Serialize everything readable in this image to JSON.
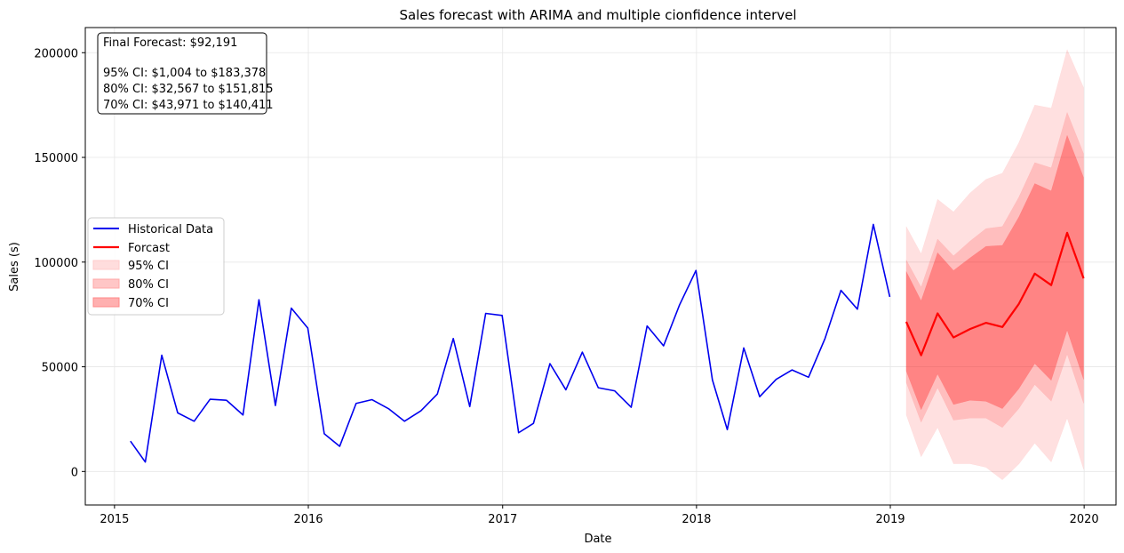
{
  "chart_data": {
    "type": "line",
    "title": "Sales forecast with ARIMA and multiple cionfidence intervel",
    "xlabel": "Date",
    "ylabel": "Sales (s)",
    "xlim": [
      "2014-11-07",
      "2020-03-01"
    ],
    "ylim": [
      -16000,
      212000
    ],
    "x_ticks": [
      "2015",
      "2016",
      "2017",
      "2018",
      "2019",
      "2020"
    ],
    "y_ticks": [
      0,
      50000,
      100000,
      150000,
      200000
    ],
    "grid": true,
    "legend_position": "center-left",
    "colors": {
      "historical": "#0000ee",
      "forecast": "#ff0000",
      "ci95": "#ffdddd",
      "ci80": "#ffbcbc",
      "ci70": "#ff8080"
    },
    "annotation": [
      "Final Forecast: $92,191",
      "",
      "95% CI: $1,004 to $183,378",
      "80% CI: $32,567 to $151,815",
      "70% CI: $43,971 to $140,411"
    ],
    "series": [
      {
        "name": "Historical Data",
        "kind": "line",
        "x": [
          "2015-01-31",
          "2015-02-28",
          "2015-03-31",
          "2015-04-30",
          "2015-05-31",
          "2015-06-30",
          "2015-07-31",
          "2015-08-31",
          "2015-09-30",
          "2015-10-31",
          "2015-11-30",
          "2015-12-31",
          "2016-01-31",
          "2016-02-29",
          "2016-03-31",
          "2016-04-30",
          "2016-05-31",
          "2016-06-30",
          "2016-07-31",
          "2016-08-31",
          "2016-09-30",
          "2016-10-31",
          "2016-11-30",
          "2016-12-31",
          "2017-01-31",
          "2017-02-28",
          "2017-03-31",
          "2017-04-30",
          "2017-05-31",
          "2017-06-30",
          "2017-07-31",
          "2017-08-31",
          "2017-09-30",
          "2017-10-31",
          "2017-11-30",
          "2017-12-31",
          "2018-01-31",
          "2018-02-28",
          "2018-03-31",
          "2018-04-30",
          "2018-05-31",
          "2018-06-30",
          "2018-07-31",
          "2018-08-31",
          "2018-09-30",
          "2018-10-31",
          "2018-11-30",
          "2018-12-31"
        ],
        "y": [
          14500,
          4500,
          55500,
          28000,
          24000,
          34500,
          34000,
          27000,
          82000,
          31500,
          78000,
          68500,
          18000,
          12000,
          32500,
          34300,
          30000,
          24000,
          29000,
          37000,
          63500,
          31000,
          75500,
          74500,
          18500,
          23000,
          51500,
          39000,
          57000,
          40000,
          38500,
          30700,
          69500,
          60000,
          79500,
          96000,
          43700,
          20000,
          59000,
          35700,
          44000,
          48500,
          45000,
          63500,
          86500,
          77500,
          118000,
          83400
        ]
      },
      {
        "name": "Forcast",
        "kind": "line",
        "x": [
          "2019-01-31",
          "2019-02-28",
          "2019-03-31",
          "2019-04-30",
          "2019-05-31",
          "2019-06-30",
          "2019-07-31",
          "2019-08-31",
          "2019-09-30",
          "2019-10-31",
          "2019-11-30",
          "2019-12-31"
        ],
        "y": [
          71500,
          55500,
          75500,
          64000,
          68000,
          71000,
          69000,
          80000,
          94500,
          89000,
          114000,
          92191
        ]
      }
    ],
    "bands": [
      {
        "name": "95% CI",
        "lower": [
          27000,
          7000,
          21000,
          3700,
          3700,
          2000,
          -4000,
          3500,
          13500,
          4500,
          25500,
          1004
        ],
        "upper": [
          117000,
          104000,
          130000,
          124000,
          133000,
          139500,
          142500,
          157000,
          175000,
          173500,
          201500,
          183378
        ]
      },
      {
        "name": "80% CI",
        "lower": [
          42500,
          23500,
          40000,
          24500,
          25500,
          25500,
          21000,
          30000,
          41500,
          33500,
          56000,
          32567
        ],
        "upper": [
          101000,
          88000,
          111000,
          103000,
          110000,
          116000,
          117000,
          131000,
          147500,
          145000,
          171500,
          151815
        ]
      },
      {
        "name": "70% CI",
        "lower": [
          48000,
          29500,
          46500,
          32000,
          34000,
          33500,
          30000,
          39500,
          51500,
          43500,
          67500,
          43971
        ],
        "upper": [
          95500,
          81500,
          104500,
          96000,
          102000,
          107500,
          108000,
          121500,
          137500,
          134000,
          160500,
          140411
        ]
      }
    ]
  }
}
